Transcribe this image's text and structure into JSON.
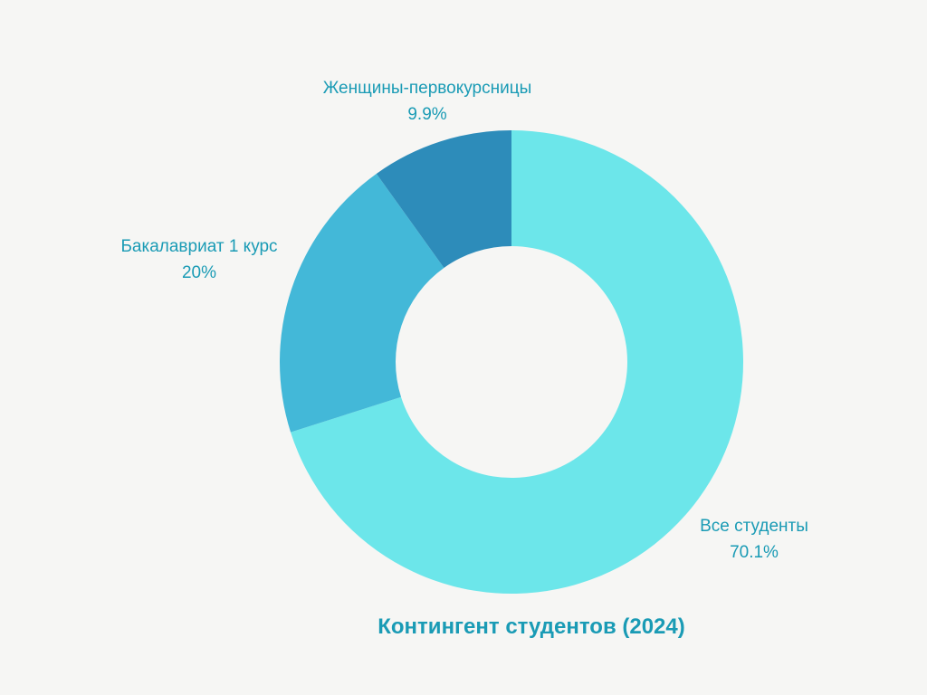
{
  "chart_data": {
    "type": "pie",
    "donut": true,
    "title": "Контингент студентов (2024)",
    "legend": "none",
    "slices": [
      {
        "label": "Все студенты",
        "value": 70.1,
        "value_label": "70.1%",
        "color": "#6ce6ea"
      },
      {
        "label": "Бакалавриат 1 курс",
        "value": 20,
        "value_label": "20%",
        "color": "#43b8d8"
      },
      {
        "label": "Женщины-первокурсницы",
        "value": 9.9,
        "value_label": "9.9%",
        "color": "#2d8cba"
      }
    ],
    "label_color": "#1a9bb5",
    "background": "#f6f6f4"
  }
}
